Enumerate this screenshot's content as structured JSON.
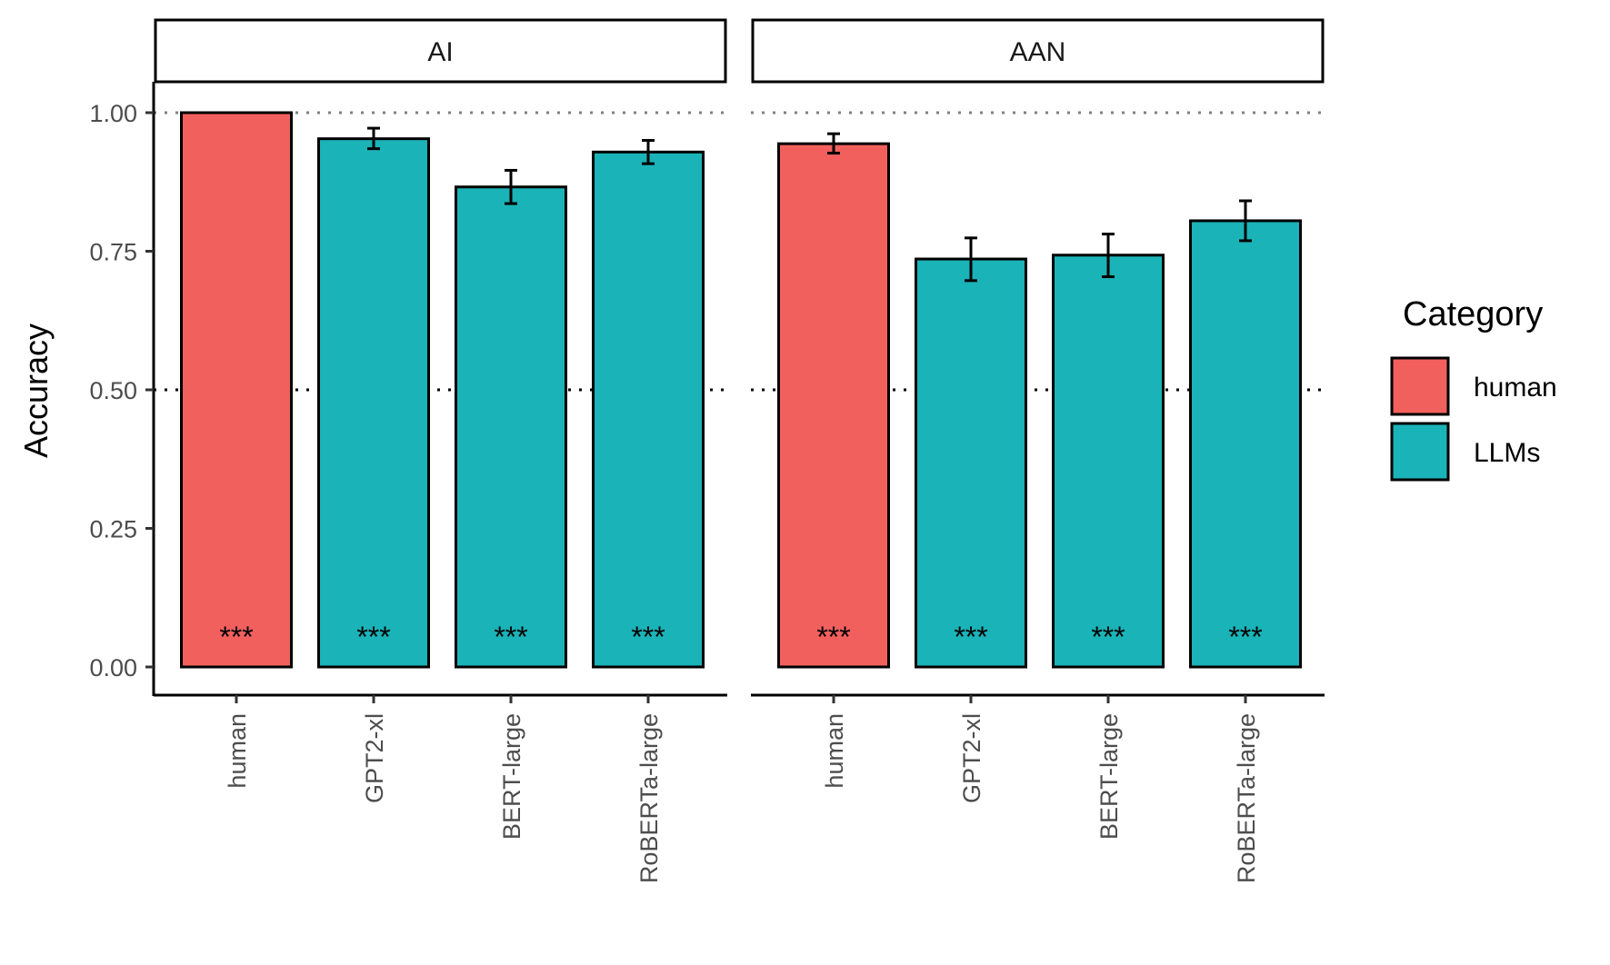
{
  "chart_data": {
    "type": "bar",
    "ylabel": "Accuracy",
    "ylim": [
      -0.05,
      1.08
    ],
    "yticks": [
      "0.00",
      "0.25",
      "0.50",
      "0.75",
      "1.00"
    ],
    "reference_lines": [
      {
        "y": 1.0,
        "style": "dotted",
        "color": "#808080"
      },
      {
        "y": 0.5,
        "style": "dotted",
        "color": "#000000"
      }
    ],
    "categories": [
      "human",
      "GPT2-xl",
      "BERT-large",
      "RoBERTa-large"
    ],
    "bar_categories": [
      "human",
      "LLMs",
      "LLMs",
      "LLMs"
    ],
    "panels": [
      {
        "title": "AI",
        "values": [
          1.0,
          0.953,
          0.866,
          0.929
        ],
        "error_low": [
          1.0,
          0.935,
          0.836,
          0.908
        ],
        "error_high": [
          1.0,
          0.972,
          0.896,
          0.95
        ],
        "annotations": [
          "***",
          "***",
          "***",
          "***"
        ]
      },
      {
        "title": "AAN",
        "values": [
          0.944,
          0.736,
          0.743,
          0.805
        ],
        "error_low": [
          0.927,
          0.697,
          0.704,
          0.769
        ],
        "error_high": [
          0.962,
          0.774,
          0.781,
          0.841
        ],
        "annotations": [
          "***",
          "***",
          "***",
          "***"
        ]
      }
    ],
    "legend": {
      "title": "Category",
      "position": "right",
      "entries": [
        {
          "label": "human",
          "color": "#F8766D"
        },
        {
          "label": "LLMs",
          "color": "#00BFC4"
        }
      ]
    },
    "colors": {
      "human": "#F2605D",
      "LLMs": "#1AB3B8"
    }
  }
}
